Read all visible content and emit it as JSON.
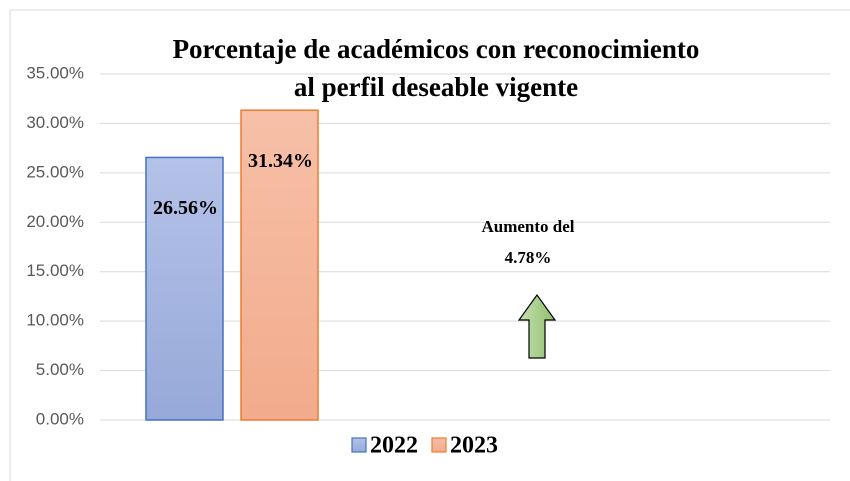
{
  "chart_data": {
    "type": "bar",
    "title": [
      "Porcentaje de académicos con reconocimiento",
      "al perfil deseable vigente"
    ],
    "categories": [
      null
    ],
    "series": [
      {
        "name": "2022",
        "color": "#a9b8e0",
        "values": [
          26.56
        ],
        "value_labels": [
          "26.56%"
        ]
      },
      {
        "name": "2023",
        "color": "#f4b8a0",
        "values": [
          31.34
        ],
        "value_labels": [
          "31.34%"
        ]
      }
    ],
    "ylim": [
      0,
      35
    ],
    "yticks": [
      {
        "value": 0,
        "label": "0.00%"
      },
      {
        "value": 5,
        "label": "5.00%"
      },
      {
        "value": 10,
        "label": "10.00%"
      },
      {
        "value": 15,
        "label": "15.00%"
      },
      {
        "value": 20,
        "label": "20.00%"
      },
      {
        "value": 25,
        "label": "25.00%"
      },
      {
        "value": 30,
        "label": "30.00%"
      },
      {
        "value": 35,
        "label": "35.00%"
      }
    ],
    "grid": true,
    "legend": "bottom",
    "annotation": [
      "Aumento del",
      "4.78%"
    ]
  }
}
